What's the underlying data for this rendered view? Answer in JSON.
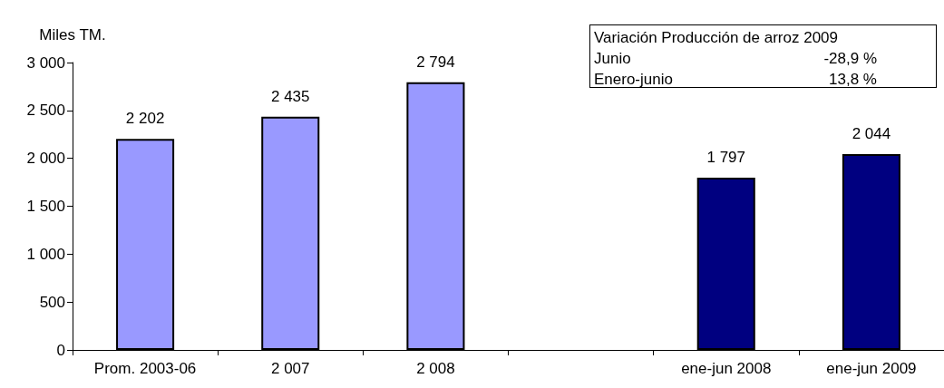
{
  "chart_data": {
    "type": "bar",
    "ylabel": "Miles TM.",
    "categories": [
      "Prom. 2003-06",
      "2 007",
      "2 008",
      null,
      "ene-jun 2008",
      "ene-jun 2009"
    ],
    "values": [
      2202,
      2435,
      2794,
      null,
      1797,
      2044
    ],
    "colors": [
      "#9999ff",
      "#9999ff",
      "#9999ff",
      null,
      "#000080",
      "#000080"
    ],
    "value_labels": [
      "2 202",
      "2 435",
      "2 794",
      null,
      "1 797",
      "2 044"
    ],
    "ylim": [
      0,
      3000
    ],
    "yticks": [
      0,
      500,
      {
        "value": 1000,
        "label": "1 000"
      },
      {
        "value": 1500,
        "label": "1 500"
      },
      {
        "value": 2000,
        "label": "2 000"
      },
      {
        "value": 2500,
        "label": "2 500"
      },
      {
        "value": 3000,
        "label": "3 000"
      }
    ],
    "grid": false,
    "annotations": [
      "Variación Producción de arroz 2009",
      "Junio",
      "-28,9 %",
      "Enero-junio",
      "13,8 %"
    ]
  }
}
